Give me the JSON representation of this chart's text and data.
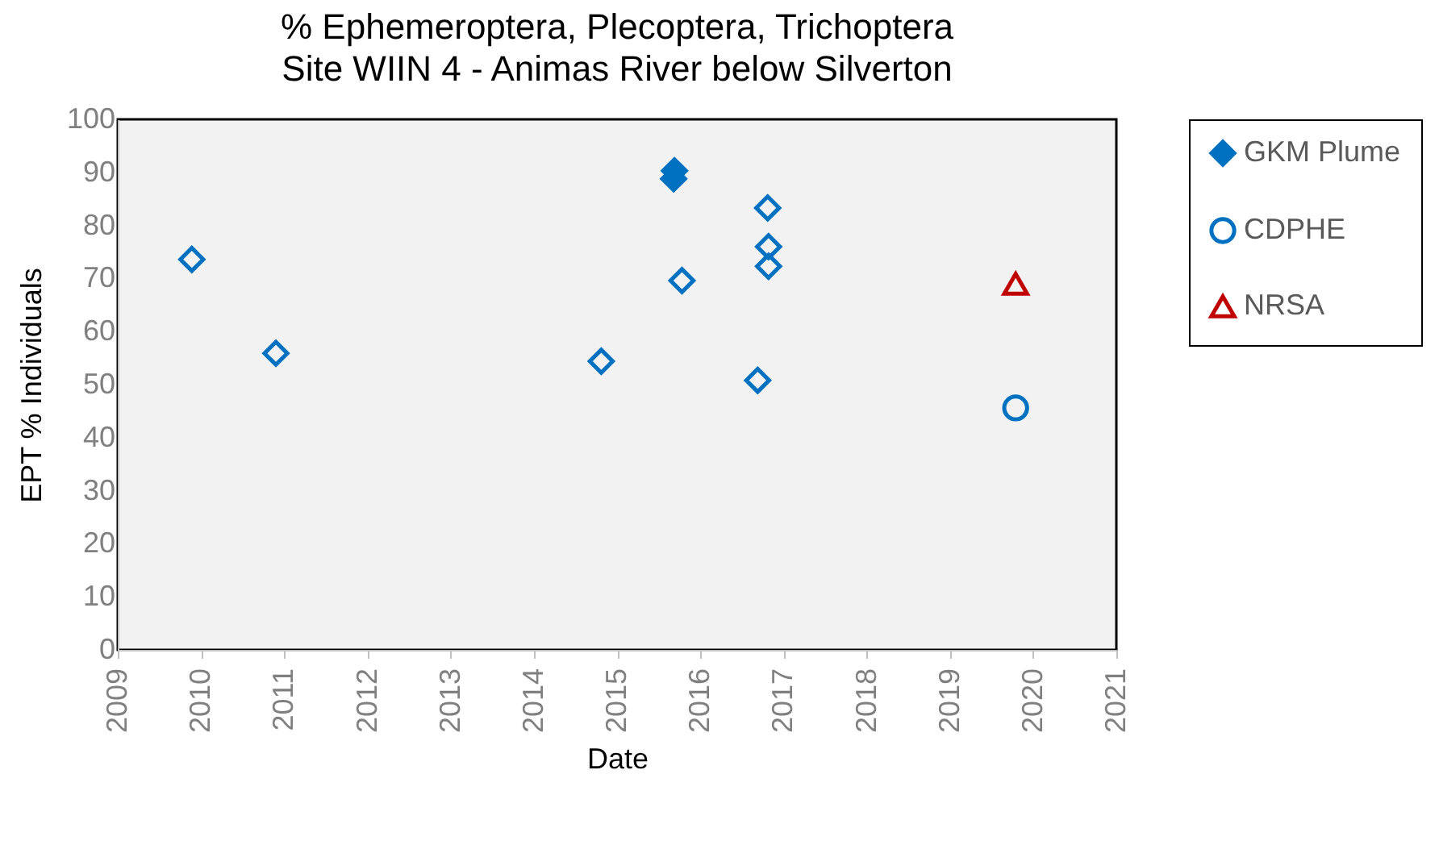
{
  "chart_data": {
    "type": "scatter",
    "title": "% Ephemeroptera, Plecoptera, Trichoptera",
    "subtitle": "Site WIIN 4 - Animas River below Silverton",
    "xlabel": "Date",
    "ylabel": "EPT % Individuals",
    "series": [
      {
        "color": "#0070c0",
        "marker": "diamond",
        "x": [
          2009.89,
          2010.9,
          2014.81,
          2015.78,
          2016.69,
          2016.81,
          2016.82,
          2016.82
        ],
        "values": [
          73.6,
          55.9,
          54.4,
          69.6,
          50.8,
          83.3,
          76.0,
          72.3
        ]
      },
      {
        "name": "GKM Plume",
        "color": "#0070c0",
        "marker": "diamond",
        "x": [
          2015.69,
          2015.68
        ],
        "values": [
          90.3,
          88.8
        ]
      },
      {
        "name": "CDPHE",
        "color": "#0070c0",
        "marker": "circle",
        "x": [
          2019.79
        ],
        "values": [
          45.6
        ]
      },
      {
        "name": "NRSA",
        "color": "#c00000",
        "marker": "triangle",
        "x": [
          2019.79
        ],
        "values": [
          69.0
        ]
      }
    ],
    "xlim": [
      2009,
      2021
    ],
    "xticks": [
      2009,
      2010,
      2011,
      2012,
      2013,
      2014,
      2015,
      2016,
      2017,
      2018,
      2019,
      2020,
      2021
    ],
    "ylim": [
      0,
      100
    ],
    "yticks": [
      0,
      10,
      20,
      30,
      40,
      50,
      60,
      70,
      80,
      90,
      100
    ],
    "grid": false,
    "legend": "right"
  }
}
